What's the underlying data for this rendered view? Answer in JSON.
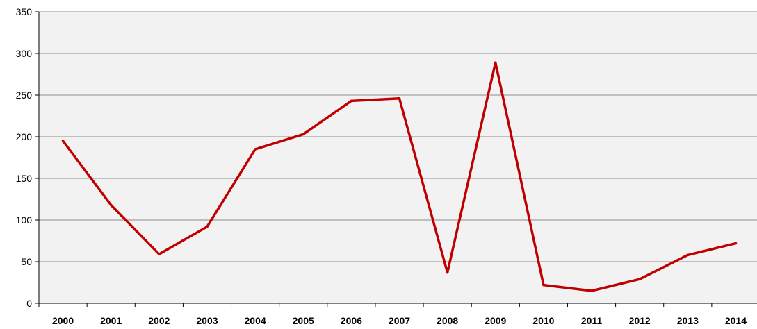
{
  "chart_data": {
    "type": "line",
    "title": "",
    "xlabel": "",
    "ylabel": "",
    "categories": [
      "2000",
      "2001",
      "2002",
      "2003",
      "2004",
      "2005",
      "2006",
      "2007",
      "2008",
      "2009",
      "2010",
      "2011",
      "2012",
      "2013",
      "2014"
    ],
    "series": [
      {
        "values": [
          195,
          118,
          59,
          92,
          185,
          203,
          243,
          246,
          37,
          289,
          22,
          15,
          29,
          58,
          72
        ],
        "color": "#C00000"
      }
    ],
    "ylim": [
      0,
      350
    ],
    "yticks": [
      0,
      50,
      100,
      150,
      200,
      250,
      300,
      350
    ],
    "grid": true,
    "legend": "none",
    "plot_background": "#F2F2F2",
    "gridline_color": "#8C8C8C"
  }
}
